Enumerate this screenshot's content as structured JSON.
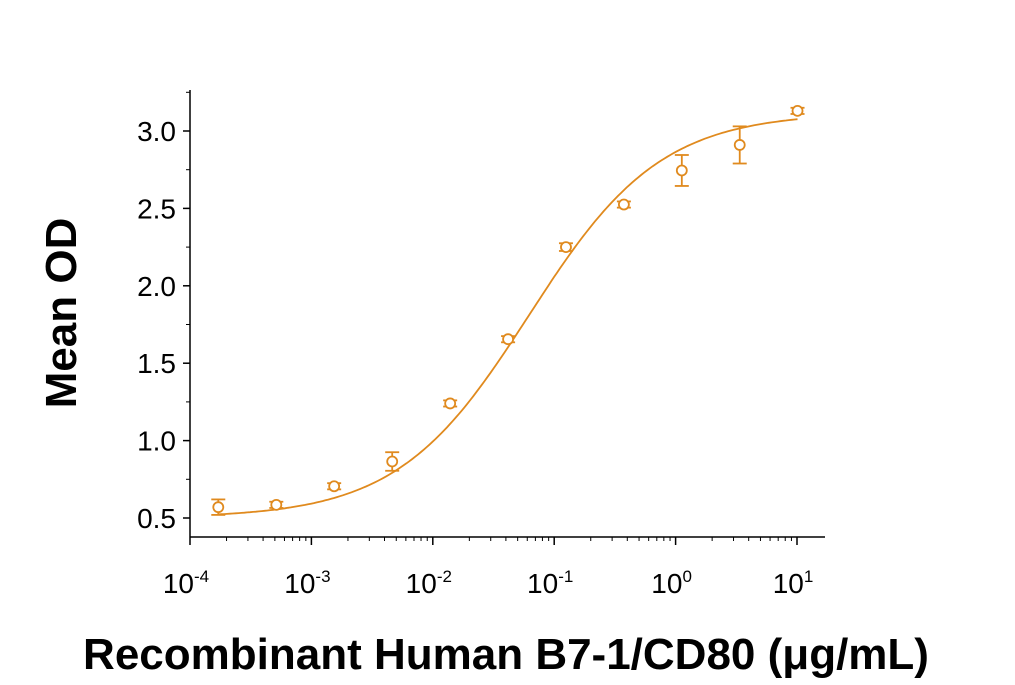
{
  "chart_data": {
    "type": "scatter",
    "title": "",
    "xlabel": "Recombinant Human B7-1/CD80 (μg/mL)",
    "ylabel": "Mean OD",
    "xscale": "log",
    "xlim": [
      0.0001,
      10
    ],
    "ylim": [
      0.45,
      3.25
    ],
    "yticks": [
      "0.5",
      "1.0",
      "1.5",
      "2.0",
      "2.5",
      "3.0"
    ],
    "xticks": [
      {
        "base": "10",
        "exp": "-4"
      },
      {
        "base": "10",
        "exp": "-3"
      },
      {
        "base": "10",
        "exp": "-2"
      },
      {
        "base": "10",
        "exp": "-1"
      },
      {
        "base": "10",
        "exp": "0"
      },
      {
        "base": "10",
        "exp": "1"
      }
    ],
    "color": "#E08A1E",
    "grid": false,
    "legend": "none",
    "series": [
      {
        "marker": "circle-open",
        "x": [
          0.000171,
          0.000514,
          0.00154,
          0.00463,
          0.0139,
          0.0417,
          0.125,
          0.375,
          1.125,
          3.375,
          10.1
        ],
        "y": [
          0.57,
          0.585,
          0.705,
          0.865,
          1.24,
          1.655,
          2.25,
          2.525,
          2.745,
          2.91,
          3.13
        ],
        "err": [
          0.05,
          0.02,
          0.02,
          0.06,
          0.02,
          0.02,
          0.025,
          0.02,
          0.1,
          0.12,
          0.02
        ]
      }
    ],
    "fit": {
      "type": "4PL",
      "bottom": 0.5,
      "top": 3.12,
      "ec50": 0.062,
      "hill": 0.8
    }
  }
}
